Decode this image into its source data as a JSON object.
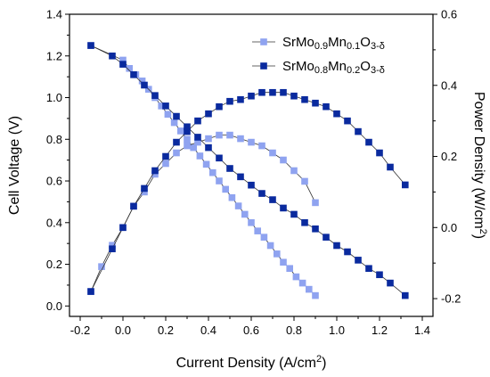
{
  "chart_data": {
    "type": "scatter",
    "x_axis": {
      "label": "Current Density (A/cm",
      "label_sup": "2",
      "label_tail": ")",
      "range": [
        -0.25,
        1.45
      ],
      "ticks": [
        "-0.2",
        "0.0",
        "0.2",
        "0.4",
        "0.6",
        "0.8",
        "1.0",
        "1.2",
        "1.4"
      ],
      "tick_values": [
        -0.2,
        0.0,
        0.2,
        0.4,
        0.6,
        0.8,
        1.0,
        1.2,
        1.4
      ]
    },
    "y_left": {
      "label": "Cell Voltage (V)",
      "range": [
        -0.05,
        1.4
      ],
      "ticks": [
        "0.0",
        "0.2",
        "0.4",
        "0.6",
        "0.8",
        "1.0",
        "1.2",
        "1.4"
      ],
      "tick_values": [
        0.0,
        0.2,
        0.4,
        0.6,
        0.8,
        1.0,
        1.2,
        1.4
      ]
    },
    "y_right": {
      "label": "Power Density (W/cm",
      "label_sup": "2",
      "label_tail": ")",
      "range": [
        -0.25,
        0.6
      ],
      "ticks": [
        "-0.2",
        "0.0",
        "0.2",
        "0.4",
        "0.6"
      ],
      "tick_values": [
        -0.2,
        0.0,
        0.2,
        0.4,
        0.6
      ]
    },
    "legend_position": "top-right",
    "grid": false,
    "series": [
      {
        "name_parts": [
          [
            "SrMo",
            ""
          ],
          [
            "0.9",
            "sub"
          ],
          [
            "Mn",
            ""
          ],
          [
            "0.1",
            "sub"
          ],
          [
            "O",
            ""
          ],
          [
            "3-δ",
            "sub"
          ]
        ],
        "color": "#8fa3f0",
        "voltage": {
          "x": [
            -0.15,
            0.0,
            0.03,
            0.06,
            0.09,
            0.12,
            0.15,
            0.18,
            0.21,
            0.24,
            0.27,
            0.3,
            0.33,
            0.36,
            0.39,
            0.42,
            0.45,
            0.48,
            0.51,
            0.54,
            0.57,
            0.6,
            0.63,
            0.66,
            0.69,
            0.72,
            0.75,
            0.78,
            0.81,
            0.84,
            0.87,
            0.9
          ],
          "y": [
            1.25,
            1.18,
            1.14,
            1.11,
            1.08,
            1.04,
            1.0,
            0.96,
            0.92,
            0.88,
            0.84,
            0.8,
            0.76,
            0.72,
            0.68,
            0.64,
            0.6,
            0.56,
            0.52,
            0.48,
            0.44,
            0.4,
            0.36,
            0.33,
            0.29,
            0.25,
            0.21,
            0.18,
            0.14,
            0.11,
            0.08,
            0.05
          ]
        },
        "power": {
          "x": [
            -0.15,
            -0.1,
            -0.05,
            0.0,
            0.05,
            0.1,
            0.15,
            0.2,
            0.25,
            0.3,
            0.35,
            0.4,
            0.45,
            0.5,
            0.55,
            0.6,
            0.65,
            0.7,
            0.75,
            0.8,
            0.85,
            0.9
          ],
          "y": [
            -0.18,
            -0.11,
            -0.05,
            0.0,
            0.06,
            0.1,
            0.15,
            0.18,
            0.21,
            0.23,
            0.24,
            0.25,
            0.26,
            0.26,
            0.25,
            0.24,
            0.23,
            0.21,
            0.19,
            0.16,
            0.13,
            0.07
          ]
        }
      },
      {
        "name_parts": [
          [
            "SrMo",
            ""
          ],
          [
            "0.8",
            "sub"
          ],
          [
            "Mn",
            ""
          ],
          [
            "0.2",
            "sub"
          ],
          [
            "O",
            ""
          ],
          [
            "3-δ",
            "sub"
          ]
        ],
        "color": "#0a2a9e",
        "voltage": {
          "x": [
            -0.15,
            -0.05,
            0.0,
            0.05,
            0.1,
            0.15,
            0.2,
            0.25,
            0.3,
            0.35,
            0.4,
            0.45,
            0.5,
            0.55,
            0.6,
            0.65,
            0.7,
            0.75,
            0.8,
            0.85,
            0.9,
            0.95,
            1.0,
            1.05,
            1.1,
            1.15,
            1.2,
            1.25,
            1.32
          ],
          "y": [
            1.25,
            1.2,
            1.16,
            1.11,
            1.06,
            1.01,
            0.96,
            0.91,
            0.86,
            0.81,
            0.76,
            0.71,
            0.66,
            0.62,
            0.58,
            0.54,
            0.51,
            0.47,
            0.44,
            0.4,
            0.37,
            0.33,
            0.29,
            0.26,
            0.22,
            0.18,
            0.15,
            0.11,
            0.05
          ]
        },
        "power": {
          "x": [
            -0.15,
            -0.05,
            0.0,
            0.05,
            0.1,
            0.15,
            0.2,
            0.25,
            0.3,
            0.35,
            0.4,
            0.45,
            0.5,
            0.55,
            0.6,
            0.65,
            0.7,
            0.75,
            0.8,
            0.85,
            0.9,
            0.95,
            1.0,
            1.05,
            1.1,
            1.15,
            1.2,
            1.25,
            1.32
          ],
          "y": [
            -0.18,
            -0.06,
            0.0,
            0.06,
            0.11,
            0.16,
            0.2,
            0.24,
            0.27,
            0.3,
            0.32,
            0.34,
            0.355,
            0.36,
            0.37,
            0.38,
            0.38,
            0.38,
            0.37,
            0.36,
            0.35,
            0.34,
            0.32,
            0.3,
            0.27,
            0.24,
            0.21,
            0.17,
            0.12
          ]
        }
      }
    ]
  }
}
